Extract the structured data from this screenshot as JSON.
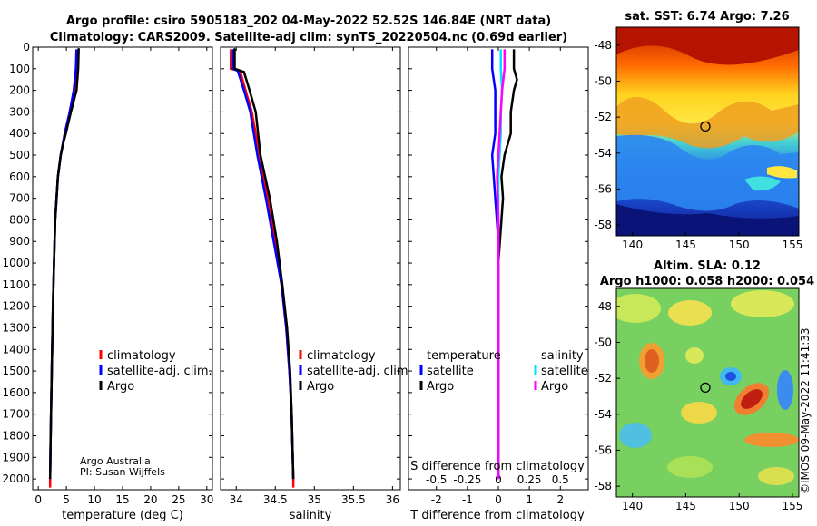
{
  "header": {
    "title_line1": "Argo profile: csiro 5905183_202 04-May-2022 52.52S 146.84E (NRT data)",
    "title_line2": "Climatology: CARS2009. Satellite-adj clim: synTS_20220504.nc (0.69d earlier)"
  },
  "colors": {
    "clim": "#ff0000",
    "sat": "#0000ff",
    "argo": "#000000",
    "sat_s": "#00e0ff",
    "argo_s": "#ff00ff"
  },
  "chart_data": [
    {
      "id": "temperature",
      "type": "line",
      "xlabel": "temperature (deg C)",
      "ylabel": "",
      "xlim": [
        -1,
        31
      ],
      "ylim": [
        2050,
        0
      ],
      "xticks": [
        0,
        5,
        10,
        15,
        20,
        25,
        30
      ],
      "yticks": [
        0,
        100,
        200,
        300,
        400,
        500,
        600,
        700,
        800,
        900,
        1000,
        1100,
        1200,
        1300,
        1400,
        1500,
        1600,
        1700,
        1800,
        1900,
        2000
      ],
      "legend": [
        "climatology",
        "satellite-adj. clim.",
        "Argo"
      ],
      "credit_line1": "Argo Australia",
      "credit_line2": "PI: Susan Wijffels",
      "series": [
        {
          "name": "climatology",
          "depth": [
            10,
            100,
            200,
            300,
            400,
            500,
            600,
            800,
            1000,
            1200,
            1500,
            1800,
            2000,
            2040
          ],
          "values": [
            7.0,
            6.8,
            6.4,
            5.6,
            4.7,
            4.0,
            3.5,
            3.0,
            2.8,
            2.6,
            2.4,
            2.2,
            2.1,
            2.1
          ]
        },
        {
          "name": "satellite-adj. clim.",
          "depth": [
            10,
            100,
            200,
            300,
            400,
            500,
            600,
            800,
            1000,
            1200,
            1500,
            1800,
            2000
          ],
          "values": [
            6.8,
            6.7,
            6.3,
            5.6,
            4.7,
            4.0,
            3.5,
            3.0,
            2.8,
            2.6,
            2.4,
            2.2,
            2.1
          ]
        },
        {
          "name": "Argo",
          "depth": [
            5,
            100,
            200,
            300,
            400,
            450,
            500,
            600,
            800,
            1000,
            1200,
            1500,
            1800,
            2000
          ],
          "values": [
            7.2,
            7.1,
            6.8,
            5.8,
            4.9,
            4.4,
            4.0,
            3.5,
            3.0,
            2.8,
            2.6,
            2.4,
            2.2,
            2.1
          ]
        }
      ]
    },
    {
      "id": "salinity",
      "type": "line",
      "xlabel": "salinity",
      "xlim": [
        33.8,
        36.1
      ],
      "ylim": [
        2050,
        0
      ],
      "xticks": [
        34,
        34.5,
        35,
        35.5,
        36
      ],
      "xticklabels": [
        "34",
        "34.5",
        "35",
        "35.5",
        "36"
      ],
      "legend": [
        "climatology",
        "satellite-adj. clim.",
        "Argo"
      ],
      "series": [
        {
          "name": "climatology",
          "depth": [
            10,
            100,
            110,
            200,
            300,
            500,
            700,
            900,
            1100,
            1300,
            1500,
            1700,
            2000,
            2040
          ],
          "values": [
            33.93,
            33.93,
            34.05,
            34.12,
            34.2,
            34.3,
            34.4,
            34.5,
            34.58,
            34.64,
            34.68,
            34.71,
            34.73,
            34.73
          ]
        },
        {
          "name": "satellite-adj. clim.",
          "depth": [
            10,
            100,
            110,
            200,
            300,
            500,
            700,
            900,
            1100,
            1300,
            1500,
            1700,
            2000
          ],
          "values": [
            33.96,
            33.96,
            34.02,
            34.1,
            34.18,
            34.27,
            34.38,
            34.48,
            34.58,
            34.64,
            34.68,
            34.71,
            34.73
          ]
        },
        {
          "name": "Argo",
          "depth": [
            5,
            100,
            115,
            200,
            300,
            400,
            500,
            700,
            900,
            1100,
            1300,
            1500,
            1700,
            2000
          ],
          "values": [
            33.98,
            33.98,
            34.1,
            34.17,
            34.25,
            34.28,
            34.31,
            34.43,
            34.52,
            34.59,
            34.65,
            34.69,
            34.71,
            34.73
          ]
        }
      ]
    },
    {
      "id": "difference",
      "type": "line",
      "xlabel": "T difference from climatology",
      "xlabel_top": "S difference from climatology",
      "xlim": [
        -2.9,
        2.9
      ],
      "ylim": [
        2050,
        0
      ],
      "xticks": [
        -2,
        -1,
        0,
        1,
        2
      ],
      "xticklabels": [
        "-2",
        "-1",
        "0",
        "1",
        "2"
      ],
      "s_ticklabels": [
        "-0.5",
        "-0.25",
        "0",
        "0.25",
        "0.5"
      ],
      "legend_temp_title": "temperature",
      "legend_sal_title": "salinity",
      "legend_temp": [
        "satellite",
        "Argo"
      ],
      "legend_sal": [
        "satellite",
        "Argo"
      ],
      "series": [
        {
          "name": "T satellite",
          "depth": [
            10,
            100,
            200,
            300,
            400,
            500,
            600,
            700,
            800,
            900,
            1000,
            1200,
            1500,
            2000
          ],
          "values": [
            -0.2,
            -0.2,
            -0.1,
            -0.1,
            -0.1,
            -0.2,
            -0.15,
            -0.1,
            -0.05,
            0,
            0,
            0,
            0,
            0
          ]
        },
        {
          "name": "T Argo",
          "depth": [
            10,
            100,
            150,
            200,
            300,
            400,
            500,
            600,
            700,
            800,
            900,
            1000,
            1200,
            1500,
            2000
          ],
          "values": [
            0.5,
            0.5,
            0.6,
            0.5,
            0.4,
            0.4,
            0.2,
            0.1,
            0.15,
            0.1,
            0.05,
            0,
            0,
            0,
            0
          ]
        },
        {
          "name": "S satellite",
          "depth": [
            10,
            100,
            200,
            300,
            400,
            500,
            600,
            800,
            1000,
            1500,
            2000
          ],
          "values": [
            0.02,
            0.02,
            0.03,
            0.02,
            0.02,
            0.01,
            0,
            0,
            0,
            0,
            0
          ]
        },
        {
          "name": "S Argo",
          "depth": [
            10,
            100,
            200,
            300,
            400,
            500,
            600,
            800,
            1000,
            1500,
            2000
          ],
          "values": [
            0.05,
            0.05,
            0.03,
            0.02,
            0.01,
            0,
            -0.01,
            0,
            0,
            0,
            0
          ]
        }
      ]
    }
  ],
  "sst_map": {
    "title": "sat. SST: 6.74 Argo: 7.26",
    "xticks": [
      140,
      145,
      150,
      155
    ],
    "yticks": [
      -48,
      -50,
      -52,
      -54,
      -56,
      -58
    ],
    "marker_lon": 146.84,
    "marker_lat": -52.52
  },
  "sla_map": {
    "title_line1": "Altim. SLA: 0.12",
    "title_line2": "Argo h1000: 0.058 h2000: 0.054",
    "xticks": [
      140,
      145,
      150,
      155
    ],
    "yticks": [
      -48,
      -50,
      -52,
      -54,
      -56,
      -58
    ],
    "marker_lon": 146.84,
    "marker_lat": -52.52
  },
  "watermark": "©IMOS 09-May-2022 11:41:33"
}
